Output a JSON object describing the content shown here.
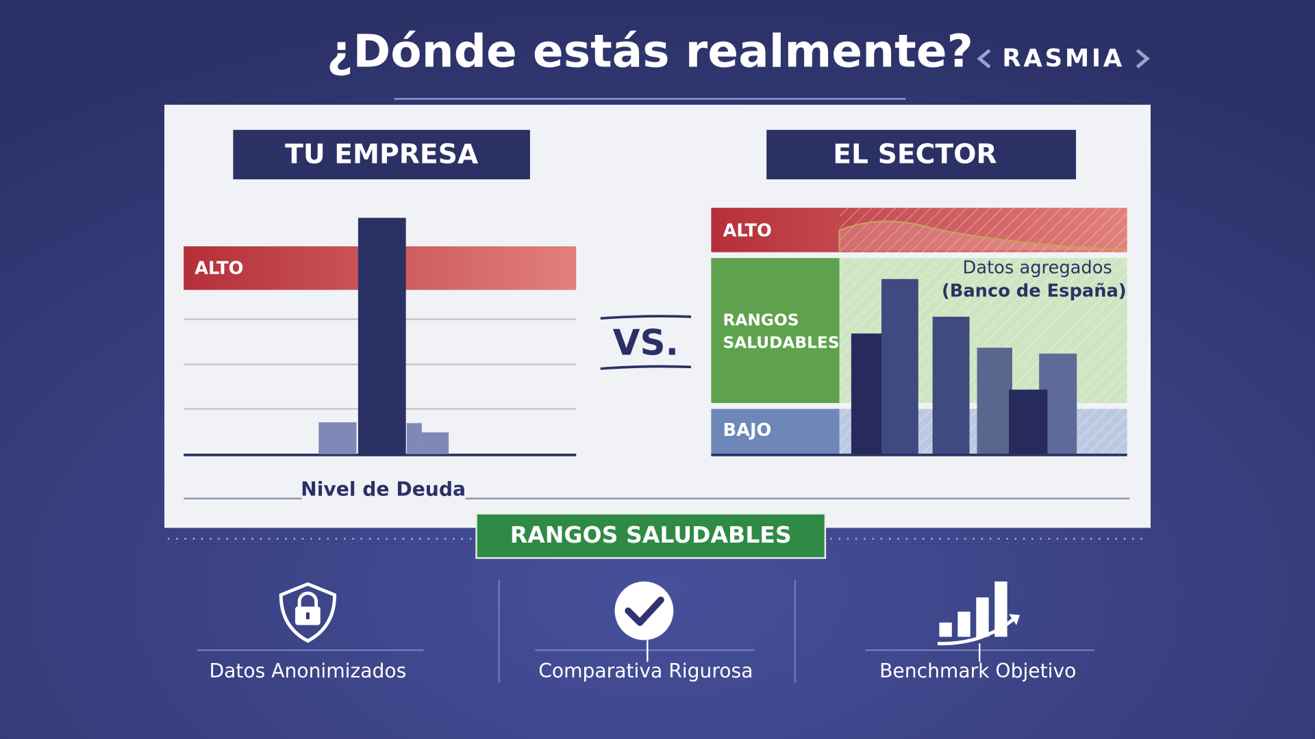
{
  "header": {
    "title": "¿Dónde estás realmente?",
    "logo": "RASMIA"
  },
  "left_panel": {
    "title": "TU EMPRESA",
    "band": "ALTO"
  },
  "vs": "VS.",
  "right_panel": {
    "title": "EL SECTOR",
    "bands": {
      "high": "ALTO",
      "healthy": [
        "RANGOS",
        "SALUDABLES"
      ],
      "low": "BAJO"
    },
    "note": [
      "Datos agregados",
      "(Banco de España)"
    ]
  },
  "axis_label": "Nivel de Deuda",
  "banner": "RANGOS SALUDABLES",
  "features": [
    {
      "label": "Datos Anonimizados"
    },
    {
      "label": "Comparativa Rigurosa"
    },
    {
      "label": "Benchmark Objetivo"
    }
  ]
}
